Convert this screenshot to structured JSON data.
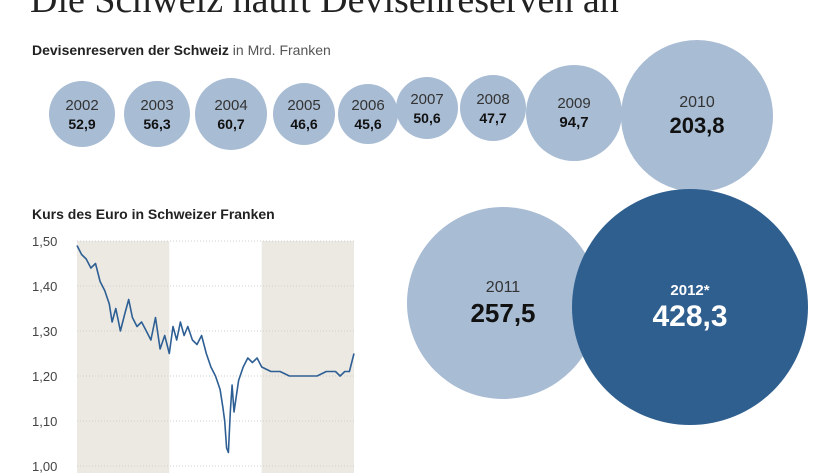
{
  "headline": "Die Schweiz häuft Devisenreserven an",
  "reserves_title": "Devisenreserven der Schweiz",
  "reserves_unit": "in Mrd. Franken",
  "euro_title": "Kurs des Euro in Schweizer Franken",
  "colors": {
    "bubble": "#a8bcd4",
    "bubble_highlight": "#2f5f8f",
    "line": "#2e5f94",
    "band": "#ece9e3"
  },
  "chart_data": [
    {
      "type": "bubble",
      "title": "Devisenreserven der Schweiz",
      "unit": "in Mrd. Franken",
      "categories": [
        "2002",
        "2003",
        "2004",
        "2005",
        "2006",
        "2007",
        "2008",
        "2009",
        "2010",
        "2011",
        "2012*"
      ],
      "labels": [
        "52,9",
        "56,3",
        "60,7",
        "46,6",
        "45,6",
        "50,6",
        "47,7",
        "94,7",
        "203,8",
        "257,5",
        "428,3"
      ],
      "values": [
        52.9,
        56.3,
        60.7,
        46.6,
        45.6,
        50.6,
        47.7,
        94.7,
        203.8,
        257.5,
        428.3
      ],
      "highlight": "2012*"
    },
    {
      "type": "line",
      "title": "Kurs des Euro in Schweizer Franken",
      "ylim": [
        1.0,
        1.5
      ],
      "yticks": [
        "1,50",
        "1,40",
        "1,30",
        "1,20",
        "1,10",
        "1,00"
      ],
      "ytick_values": [
        1.5,
        1.4,
        1.3,
        1.2,
        1.1,
        1.0
      ],
      "xlim": [
        2010.0,
        2013.0
      ],
      "shaded_years": [
        [
          2010.0,
          2011.0
        ],
        [
          2012.0,
          2013.0
        ]
      ],
      "x": [
        2010.0,
        2010.05,
        2010.1,
        2010.15,
        2010.2,
        2010.25,
        2010.3,
        2010.35,
        2010.38,
        2010.42,
        2010.47,
        2010.52,
        2010.56,
        2010.6,
        2010.65,
        2010.7,
        2010.75,
        2010.8,
        2010.85,
        2010.9,
        2010.95,
        2011.0,
        2011.04,
        2011.08,
        2011.12,
        2011.16,
        2011.2,
        2011.25,
        2011.3,
        2011.35,
        2011.4,
        2011.45,
        2011.5,
        2011.55,
        2011.58,
        2011.6,
        2011.62,
        2011.64,
        2011.66,
        2011.68,
        2011.7,
        2011.75,
        2011.8,
        2011.85,
        2011.9,
        2011.95,
        2012.0,
        2012.1,
        2012.2,
        2012.3,
        2012.4,
        2012.5,
        2012.6,
        2012.7,
        2012.75,
        2012.8,
        2012.85,
        2012.9,
        2012.95,
        2013.0
      ],
      "y": [
        1.49,
        1.47,
        1.46,
        1.44,
        1.45,
        1.41,
        1.39,
        1.36,
        1.32,
        1.35,
        1.3,
        1.34,
        1.37,
        1.33,
        1.31,
        1.32,
        1.3,
        1.28,
        1.33,
        1.26,
        1.29,
        1.25,
        1.31,
        1.28,
        1.32,
        1.29,
        1.31,
        1.28,
        1.27,
        1.29,
        1.25,
        1.22,
        1.2,
        1.17,
        1.13,
        1.1,
        1.04,
        1.03,
        1.12,
        1.18,
        1.12,
        1.19,
        1.22,
        1.24,
        1.23,
        1.24,
        1.22,
        1.21,
        1.21,
        1.2,
        1.2,
        1.2,
        1.2,
        1.21,
        1.21,
        1.21,
        1.2,
        1.21,
        1.21,
        1.25
      ]
    }
  ]
}
